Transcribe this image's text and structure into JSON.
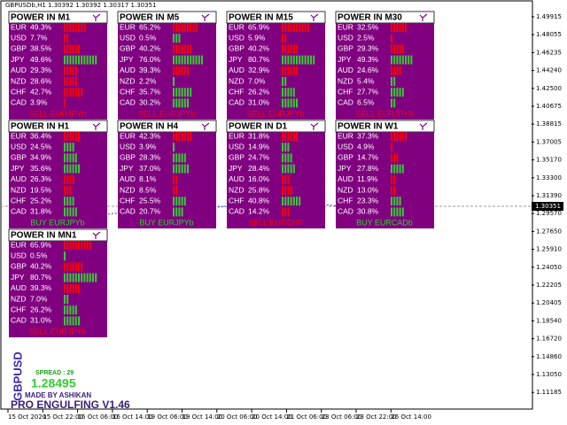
{
  "header": {
    "title": "GBPUSDb,H1  1.30392 1.30392 1.30317 1.30351"
  },
  "panels": [
    {
      "title": "POWER IN M1",
      "signal": "SELL EURJPYb",
      "signal_color": "#ff0000",
      "rows": [
        {
          "currency": "EUR",
          "strength": "49.3%",
          "bars": 8,
          "color": "#ff0000"
        },
        {
          "currency": "USD",
          "strength": "7.7%",
          "bars": 2,
          "color": "#ff0000"
        },
        {
          "currency": "GBP",
          "strength": "38.5%",
          "bars": 6,
          "color": "#ff0000"
        },
        {
          "currency": "JPY",
          "strength": "49.6%",
          "bars": 12,
          "color": "#32cd32"
        },
        {
          "currency": "AUD",
          "strength": "29.3%",
          "bars": 5,
          "color": "#ff0000"
        },
        {
          "currency": "NZD",
          "strength": "28.6%",
          "bars": 5,
          "color": "#ff0000"
        },
        {
          "currency": "CHF",
          "strength": "42.7%",
          "bars": 7,
          "color": "#ff0000"
        },
        {
          "currency": "CAD",
          "strength": "3.9%",
          "bars": 1,
          "color": "#ff0000"
        }
      ]
    },
    {
      "title": "POWER IN M5",
      "signal": "SELL EURJPYb",
      "signal_color": "#ff0000",
      "rows": [
        {
          "currency": "EUR",
          "strength": "65.2%",
          "bars": 9,
          "color": "#ff0000"
        },
        {
          "currency": "USD",
          "strength": "0.5%",
          "bars": 3,
          "color": "#32cd32"
        },
        {
          "currency": "GBP",
          "strength": "40.2%",
          "bars": 7,
          "color": "#ff0000"
        },
        {
          "currency": "JPY",
          "strength": "76.0%",
          "bars": 11,
          "color": "#32cd32"
        },
        {
          "currency": "AUD",
          "strength": "39.3%",
          "bars": 6,
          "color": "#ff0000"
        },
        {
          "currency": "NZD",
          "strength": "2.2%",
          "bars": 1,
          "color": "#32cd32"
        },
        {
          "currency": "CHF",
          "strength": "35.7%",
          "bars": 7,
          "color": "#32cd32"
        },
        {
          "currency": "CAD",
          "strength": "30.2%",
          "bars": 6,
          "color": "#32cd32"
        }
      ]
    },
    {
      "title": "POWER IN M15",
      "signal": "SELL EURJPYb",
      "signal_color": "#ff0000",
      "rows": [
        {
          "currency": "EUR",
          "strength": "65.9%",
          "bars": 10,
          "color": "#ff0000"
        },
        {
          "currency": "USD",
          "strength": "5.9%",
          "bars": 2,
          "color": "#ff0000"
        },
        {
          "currency": "GBP",
          "strength": "40.2%",
          "bars": 6,
          "color": "#ff0000"
        },
        {
          "currency": "JPY",
          "strength": "80.7%",
          "bars": 12,
          "color": "#32cd32"
        },
        {
          "currency": "AUD",
          "strength": "32.9%",
          "bars": 6,
          "color": "#ff0000"
        },
        {
          "currency": "NZD",
          "strength": "7.0%",
          "bars": 2,
          "color": "#32cd32"
        },
        {
          "currency": "CHF",
          "strength": "26.2%",
          "bars": 5,
          "color": "#32cd32"
        },
        {
          "currency": "CAD",
          "strength": "31.0%",
          "bars": 6,
          "color": "#32cd32"
        }
      ]
    },
    {
      "title": "POWER IN M30",
      "signal": "SELL EURJPYb",
      "signal_color": "#ff0000",
      "rows": [
        {
          "currency": "EUR",
          "strength": "32.5%",
          "bars": 6,
          "color": "#ff0000"
        },
        {
          "currency": "USD",
          "strength": "2.5%",
          "bars": 1,
          "color": "#ff0000"
        },
        {
          "currency": "GBP",
          "strength": "29.3%",
          "bars": 5,
          "color": "#ff0000"
        },
        {
          "currency": "JPY",
          "strength": "49.3%",
          "bars": 8,
          "color": "#32cd32"
        },
        {
          "currency": "AUD",
          "strength": "24.6%",
          "bars": 4,
          "color": "#ff0000"
        },
        {
          "currency": "NZD",
          "strength": "5.4%",
          "bars": 2,
          "color": "#32cd32"
        },
        {
          "currency": "CHF",
          "strength": "27.7%",
          "bars": 5,
          "color": "#32cd32"
        },
        {
          "currency": "CAD",
          "strength": "6.5%",
          "bars": 2,
          "color": "#32cd32"
        }
      ]
    },
    {
      "title": "POWER IN H1",
      "signal": "BUY EURJPYb",
      "signal_color": "#32cd32",
      "rows": [
        {
          "currency": "EUR",
          "strength": "36.4%",
          "bars": 6,
          "color": "#ff0000"
        },
        {
          "currency": "USD",
          "strength": "24.5%",
          "bars": 4,
          "color": "#32cd32"
        },
        {
          "currency": "GBP",
          "strength": "34.9%",
          "bars": 5,
          "color": "#32cd32"
        },
        {
          "currency": "JPY",
          "strength": "35.6%",
          "bars": 6,
          "color": "#32cd32"
        },
        {
          "currency": "AUD",
          "strength": "26.3%",
          "bars": 4,
          "color": "#ff0000"
        },
        {
          "currency": "NZD",
          "strength": "19.5%",
          "bars": 3,
          "color": "#ff0000"
        },
        {
          "currency": "CHF",
          "strength": "25.2%",
          "bars": 4,
          "color": "#32cd32"
        },
        {
          "currency": "CAD",
          "strength": "31.8%",
          "bars": 5,
          "color": "#32cd32"
        }
      ]
    },
    {
      "title": "POWER IN H4",
      "signal": "BUY EURJPYb",
      "signal_color": "#32cd32",
      "rows": [
        {
          "currency": "EUR",
          "strength": "42.3%",
          "bars": 7,
          "color": "#ff0000"
        },
        {
          "currency": "USD",
          "strength": "3.9%",
          "bars": 1,
          "color": "#32cd32"
        },
        {
          "currency": "GBP",
          "strength": "28.3%",
          "bars": 5,
          "color": "#32cd32"
        },
        {
          "currency": "JPY",
          "strength": "37.0%",
          "bars": 6,
          "color": "#32cd32"
        },
        {
          "currency": "AUD",
          "strength": "8.1%",
          "bars": 2,
          "color": "#ff0000"
        },
        {
          "currency": "NZD",
          "strength": "8.5%",
          "bars": 2,
          "color": "#ff0000"
        },
        {
          "currency": "CHF",
          "strength": "25.5%",
          "bars": 5,
          "color": "#32cd32"
        },
        {
          "currency": "CAD",
          "strength": "20.7%",
          "bars": 4,
          "color": "#32cd32"
        }
      ]
    },
    {
      "title": "POWER IN D1",
      "signal": "SELL EURCHF",
      "signal_color": "#ff0000",
      "rows": [
        {
          "currency": "EUR",
          "strength": "31.8%",
          "bars": 6,
          "color": "#ff0000"
        },
        {
          "currency": "USD",
          "strength": "14.9%",
          "bars": 3,
          "color": "#32cd32"
        },
        {
          "currency": "GBP",
          "strength": "24.7%",
          "bars": 4,
          "color": "#32cd32"
        },
        {
          "currency": "JPY",
          "strength": "28.4%",
          "bars": 5,
          "color": "#32cd32"
        },
        {
          "currency": "AUD",
          "strength": "16.0%",
          "bars": 3,
          "color": "#ff0000"
        },
        {
          "currency": "NZD",
          "strength": "25.8%",
          "bars": 4,
          "color": "#ff0000"
        },
        {
          "currency": "CHF",
          "strength": "40.8%",
          "bars": 7,
          "color": "#32cd32"
        },
        {
          "currency": "CAD",
          "strength": "14.2%",
          "bars": 3,
          "color": "#ff0000"
        }
      ]
    },
    {
      "title": "POWER IN W1",
      "signal": "BUY EURCADb",
      "signal_color": "#32cd32",
      "rows": [
        {
          "currency": "EUR",
          "strength": "37.3%",
          "bars": 6,
          "color": "#ff0000"
        },
        {
          "currency": "USD",
          "strength": "4.9%",
          "bars": 1,
          "color": "#ff0000"
        },
        {
          "currency": "GBP",
          "strength": "14.7%",
          "bars": 3,
          "color": "#ff0000"
        },
        {
          "currency": "JPY",
          "strength": "27.8%",
          "bars": 5,
          "color": "#32cd32"
        },
        {
          "currency": "AUD",
          "strength": "11.9%",
          "bars": 2,
          "color": "#ff0000"
        },
        {
          "currency": "NZD",
          "strength": "13.0%",
          "bars": 2,
          "color": "#ff0000"
        },
        {
          "currency": "CHF",
          "strength": "23.3%",
          "bars": 4,
          "color": "#32cd32"
        },
        {
          "currency": "CAD",
          "strength": "30.8%",
          "bars": 5,
          "color": "#32cd32"
        }
      ]
    },
    {
      "title": "POWER IN MN1",
      "signal": "SELL EURJPYb",
      "signal_color": "#ff0000",
      "rows": [
        {
          "currency": "EUR",
          "strength": "65.9%",
          "bars": 10,
          "color": "#ff0000"
        },
        {
          "currency": "USD",
          "strength": "0.5%",
          "bars": 1,
          "color": "#32cd32"
        },
        {
          "currency": "GBP",
          "strength": "40.2%",
          "bars": 7,
          "color": "#ff0000"
        },
        {
          "currency": "JPY",
          "strength": "80.7%",
          "bars": 12,
          "color": "#32cd32"
        },
        {
          "currency": "AUD",
          "strength": "39.3%",
          "bars": 6,
          "color": "#ff0000"
        },
        {
          "currency": "NZD",
          "strength": "7.0%",
          "bars": 2,
          "color": "#32cd32"
        },
        {
          "currency": "CHF",
          "strength": "26.2%",
          "bars": 5,
          "color": "#32cd32"
        },
        {
          "currency": "CAD",
          "strength": "31.0%",
          "bars": 6,
          "color": "#32cd32"
        }
      ]
    }
  ],
  "price_axis": {
    "labels": [
      "1.49915",
      "1.48055",
      "1.46235",
      "1.44240",
      "1.42500",
      "1.40675",
      "1.38815",
      "1.37005",
      "1.35170",
      "1.33300",
      "1.31390",
      "1.29570",
      "1.27650",
      "1.25910",
      "1.24050",
      "1.22205",
      "1.20405",
      "1.18540",
      "1.16720",
      "1.14860",
      "1.13050",
      "1.11185"
    ],
    "current": "1.30351"
  },
  "time_axis": {
    "labels": [
      "15 Oct 2020",
      "15 Oct 22:00",
      "16 Oct 06:00",
      "16 Oct 14:00",
      "19 Oct 06:00",
      "19 Oct 14:00",
      "20 Oct 06:00",
      "20 Oct 14:00",
      "21 Oct 06:00",
      "23 Oct 06:00",
      "23 Oct 22:00",
      "26 Oct 14:00"
    ]
  },
  "info": {
    "symbol": "GBPUSD",
    "spread": "SPREAD : 29",
    "price": "1.28495",
    "author": "MADE BY ASHIKAN",
    "name": "PRO ENGULFING V1.46"
  }
}
